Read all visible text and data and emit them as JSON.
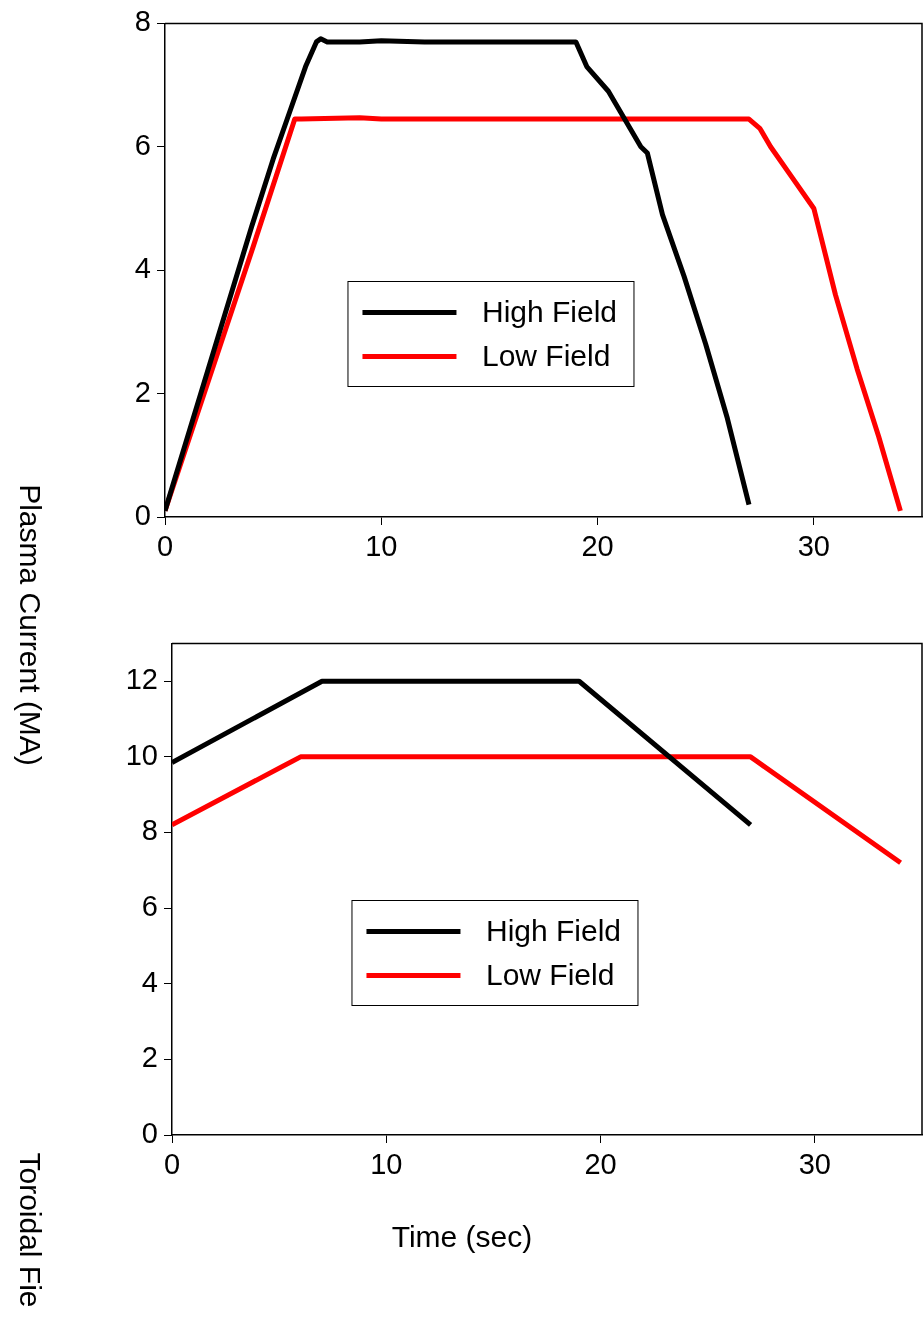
{
  "chart_data": [
    {
      "type": "line",
      "ylabel": "Plasma Current (MA)",
      "xlim": [
        0,
        35
      ],
      "xticks": [
        0,
        10,
        20,
        30
      ],
      "ylim": [
        0,
        8
      ],
      "yticks": [
        0,
        2,
        4,
        6,
        8
      ],
      "grid": false,
      "legend": "center",
      "marker": "none",
      "line_style": "solid",
      "series": [
        {
          "name": "High Field",
          "color": "#000000",
          "x": [
            0,
            2,
            4,
            5,
            5.8,
            6.5,
            7,
            7.2,
            7.5,
            9,
            10,
            12,
            15,
            19,
            19.5,
            20.5,
            22,
            22.3,
            23,
            24,
            25,
            26,
            27
          ],
          "values": [
            0.1,
            2.4,
            4.7,
            5.8,
            6.6,
            7.3,
            7.7,
            7.75,
            7.7,
            7.7,
            7.72,
            7.7,
            7.7,
            7.7,
            7.3,
            6.9,
            6.0,
            5.9,
            4.9,
            3.9,
            2.8,
            1.6,
            0.2
          ]
        },
        {
          "name": "Low Field",
          "color": "#ff0000",
          "x": [
            0,
            2,
            4,
            6,
            6.3,
            9,
            10,
            15,
            20,
            27,
            27.5,
            28,
            29,
            30,
            31,
            32,
            33,
            34
          ],
          "values": [
            0.1,
            2.2,
            4.3,
            6.45,
            6.45,
            6.47,
            6.45,
            6.45,
            6.45,
            6.45,
            6.3,
            6.0,
            5.5,
            5.0,
            3.6,
            2.4,
            1.3,
            0.1
          ]
        }
      ]
    },
    {
      "type": "line",
      "ylabel": "Toroidal Fie",
      "xlabel": "Time (sec)",
      "xlim": [
        0,
        35
      ],
      "xticks": [
        0,
        10,
        20,
        30
      ],
      "ylim": [
        0,
        13
      ],
      "yticks": [
        0,
        2,
        4,
        6,
        8,
        10,
        12
      ],
      "grid": false,
      "legend": "center",
      "marker": "none",
      "line_style": "solid",
      "series": [
        {
          "name": "High Field",
          "color": "#000000",
          "x": [
            0,
            7,
            19,
            27
          ],
          "values": [
            9.85,
            12,
            12,
            8.2
          ]
        },
        {
          "name": "Low Field",
          "color": "#ff0000",
          "x": [
            0,
            6,
            27,
            34
          ],
          "values": [
            8.2,
            10,
            10,
            7.2
          ]
        }
      ]
    }
  ]
}
